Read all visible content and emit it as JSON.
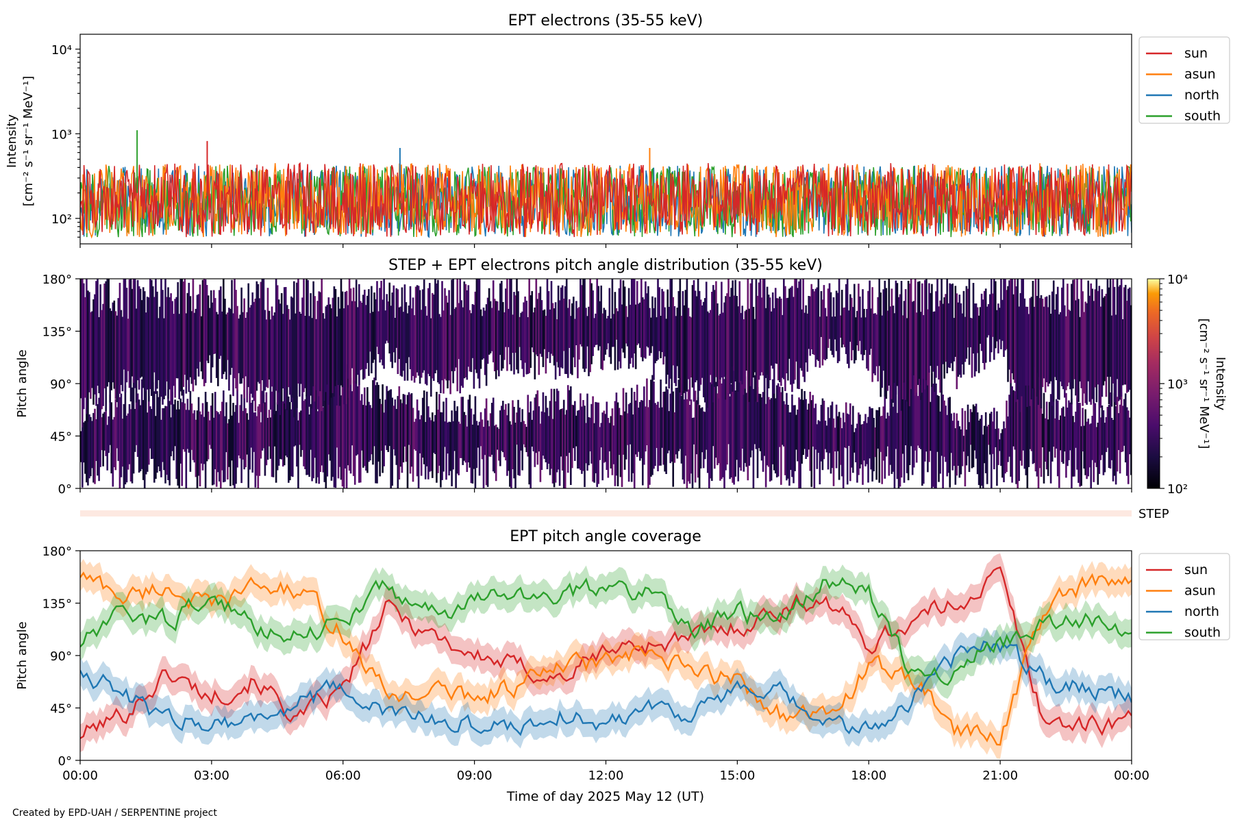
{
  "credit": "Created by EPD-UAH / SERPENTINE project",
  "colors": {
    "sun": "#d62728",
    "asun": "#ff7f0e",
    "north": "#1f77b4",
    "south": "#2ca02c",
    "step_band": "#fde9e1"
  },
  "chart_data": [
    {
      "id": "intensity",
      "type": "line",
      "title": "EPT electrons (35-55 keV)",
      "ylabel_line1": "Intensity",
      "ylabel_line2": "[cm⁻² s⁻¹ sr⁻¹ MeV⁻¹]",
      "yscale": "log",
      "ylim": [
        50,
        15000
      ],
      "yticks": [
        100,
        1000,
        10000
      ],
      "ytick_labels": [
        "10²",
        "10³",
        "10⁴"
      ],
      "xlim": [
        0,
        24
      ],
      "legend_position": "outside-top-right",
      "series": [
        {
          "name": "sun",
          "typical_range": [
            60,
            450
          ],
          "peak": 820
        },
        {
          "name": "asun",
          "typical_range": [
            60,
            450
          ],
          "peak": 680
        },
        {
          "name": "north",
          "typical_range": [
            60,
            420
          ],
          "peak": 680
        },
        {
          "name": "south",
          "typical_range": [
            60,
            420
          ],
          "peak": 1100
        }
      ]
    },
    {
      "id": "pad",
      "type": "heatmap",
      "title": "STEP + EPT electrons pitch angle distribution (35-55 keV)",
      "ylabel": "Pitch angle",
      "ylim": [
        0,
        180
      ],
      "yticks": [
        0,
        45,
        90,
        135,
        180
      ],
      "ytick_labels": [
        "0°",
        "45°",
        "90°",
        "135°",
        "180°"
      ],
      "xlim": [
        0,
        24
      ],
      "colorbar": {
        "label_line1": "Intensity",
        "label_line2": "[cm⁻² s⁻¹ sr⁻¹ MeV⁻¹]",
        "scale": "log",
        "range": [
          100,
          10000
        ],
        "tick_labels": [
          "10²",
          "10³",
          "10⁴"
        ],
        "colormap": "inferno"
      }
    },
    {
      "id": "step_band",
      "type": "bar",
      "label": "STEP"
    },
    {
      "id": "coverage",
      "type": "line",
      "title": "EPT pitch angle coverage",
      "ylabel": "Pitch angle",
      "xlabel": "Time of day 2025 May 12 (UT)",
      "ylim": [
        0,
        180
      ],
      "yticks": [
        0,
        45,
        90,
        135,
        180
      ],
      "ytick_labels": [
        "0°",
        "45°",
        "90°",
        "135°",
        "180°"
      ],
      "xlim": [
        0,
        24
      ],
      "xticks": [
        0,
        3,
        6,
        9,
        12,
        15,
        18,
        21,
        24
      ],
      "xtick_labels": [
        "00:00",
        "03:00",
        "06:00",
        "09:00",
        "12:00",
        "15:00",
        "18:00",
        "21:00",
        "00:00"
      ],
      "legend_position": "outside-top-right",
      "shaded_spread_deg": 12,
      "series": [
        {
          "name": "sun",
          "x": [
            0,
            1,
            2,
            3,
            4,
            5,
            6,
            7,
            8,
            9,
            10,
            11,
            12,
            13,
            14,
            15,
            16,
            17,
            18,
            19,
            20,
            21,
            22,
            23,
            24
          ],
          "y": [
            22,
            40,
            75,
            55,
            70,
            35,
            60,
            130,
            110,
            90,
            80,
            70,
            95,
            100,
            105,
            115,
            130,
            140,
            100,
            120,
            135,
            160,
            35,
            30,
            35
          ]
        },
        {
          "name": "asun",
          "x": [
            0,
            1,
            2,
            3,
            4,
            5,
            6,
            7,
            8,
            9,
            10,
            11,
            12,
            13,
            14,
            15,
            16,
            17,
            18,
            19,
            20,
            21,
            22,
            23,
            24
          ],
          "y": [
            160,
            140,
            150,
            130,
            150,
            145,
            110,
            55,
            60,
            55,
            65,
            80,
            85,
            90,
            75,
            70,
            40,
            35,
            80,
            70,
            25,
            20,
            130,
            150,
            150
          ]
        },
        {
          "name": "north",
          "x": [
            0,
            1,
            2,
            3,
            4,
            5,
            6,
            7,
            8,
            9,
            10,
            11,
            12,
            13,
            14,
            15,
            16,
            17,
            18,
            19,
            20,
            21,
            22,
            23,
            24
          ],
          "y": [
            80,
            55,
            35,
            35,
            35,
            50,
            60,
            40,
            35,
            30,
            30,
            40,
            30,
            50,
            40,
            60,
            55,
            30,
            25,
            55,
            90,
            100,
            70,
            65,
            55
          ]
        },
        {
          "name": "south",
          "x": [
            0,
            1,
            2,
            3,
            4,
            5,
            6,
            7,
            8,
            9,
            10,
            11,
            12,
            13,
            14,
            15,
            16,
            17,
            18,
            19,
            20,
            21,
            22,
            23,
            24
          ],
          "y": [
            100,
            125,
            120,
            140,
            115,
            110,
            120,
            150,
            125,
            135,
            145,
            140,
            150,
            145,
            115,
            125,
            120,
            155,
            145,
            75,
            80,
            100,
            115,
            120,
            115
          ]
        }
      ]
    }
  ]
}
